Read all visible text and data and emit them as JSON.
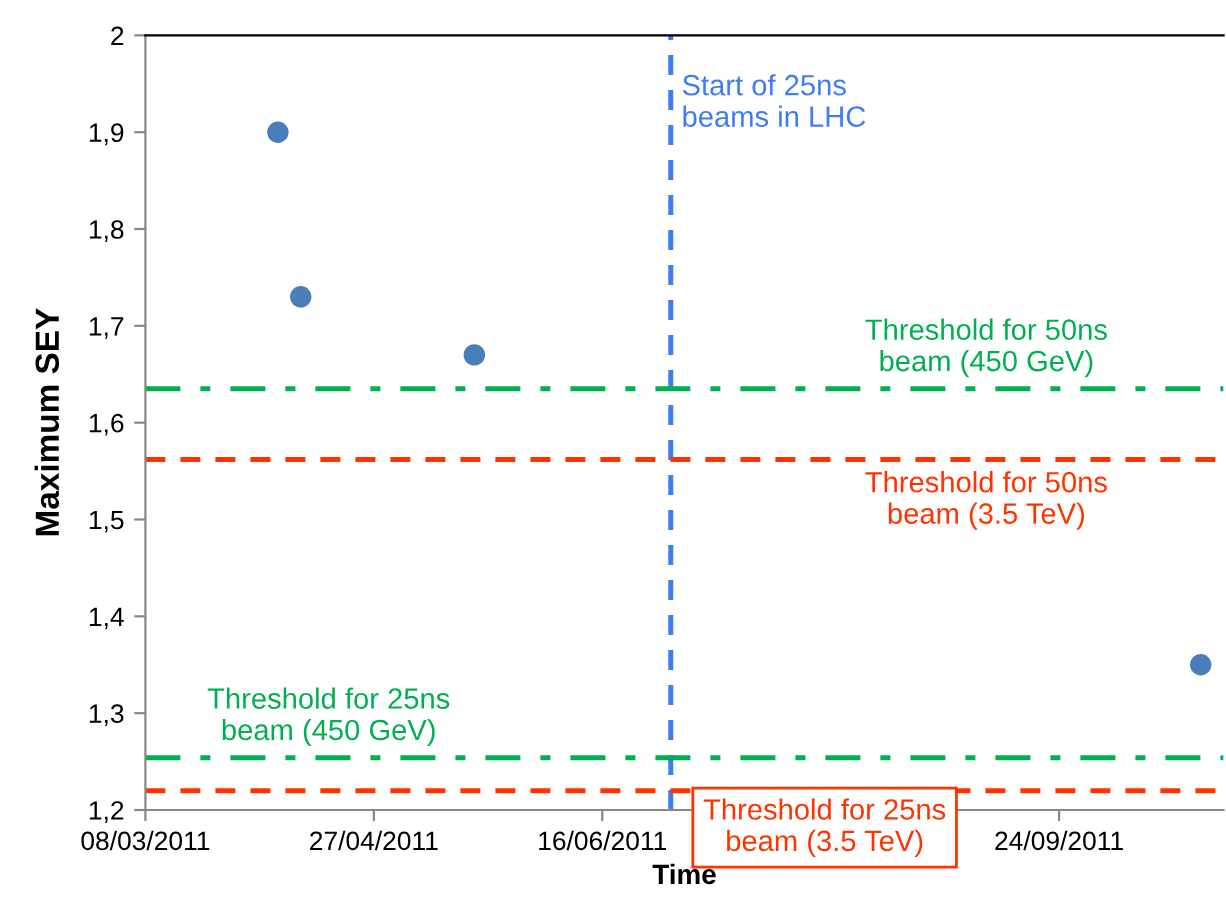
{
  "chart_data": {
    "type": "scatter",
    "xlabel": "Time",
    "ylabel": "Maximum SEY",
    "x": [
      "2011-04-06",
      "2011-04-11",
      "2011-05-19",
      "2011-10-25"
    ],
    "series": [
      {
        "color": "#4a7ebb",
        "values": [
          1.9,
          1.73,
          1.67,
          1.35
        ]
      }
    ],
    "marker": "circle",
    "xlim": [
      "2011-03-08",
      "2011-10-30"
    ],
    "xticks": [
      {
        "value": "2011-03-08",
        "label": "08/03/2011"
      },
      {
        "value": "2011-04-27",
        "label": "27/04/2011"
      },
      {
        "value": "2011-06-16",
        "label": "16/06/2011"
      },
      {
        "value": "2011-08-05",
        "label": null
      },
      {
        "value": "2011-09-24",
        "label": "24/09/2011"
      }
    ],
    "ylim": [
      1.2,
      2
    ],
    "yticks": [
      {
        "value": 1.2,
        "label": "1,2"
      },
      {
        "value": 1.3,
        "label": "1,3"
      },
      {
        "value": 1.4,
        "label": "1,4"
      },
      {
        "value": 1.5,
        "label": "1,5"
      },
      {
        "value": 1.6,
        "label": "1,6"
      },
      {
        "value": 1.7,
        "label": "1,7"
      },
      {
        "value": 1.8,
        "label": "1,8"
      },
      {
        "value": 1.9,
        "label": "1,9"
      },
      2
    ],
    "ref_lines": [
      {
        "axis": "x",
        "value": "2011-07-01",
        "label": "Start of 25ns\nbeams in LHC",
        "color": "#3d7cf5",
        "line_style": "dashed"
      },
      {
        "axis": "y",
        "value": 1.635,
        "label": "Threshold for 50ns\nbeam (450 GeV)",
        "color": "#00b050",
        "line_style": "dashdot"
      },
      {
        "axis": "y",
        "value": 1.562,
        "label": "Threshold for 50ns\nbeam (3.5 TeV)",
        "color": "#ff3300",
        "line_style": "dashed"
      },
      {
        "axis": "y",
        "value": 1.254,
        "label": "Threshold for 25ns\nbeam (450 GeV)",
        "color": "#00b050",
        "line_style": "dashdot"
      },
      {
        "axis": "y",
        "value": 1.22,
        "label": "Threshold for 25ns\nbeam (3.5 TeV)",
        "color": "#ff3300",
        "line_style": "dashed"
      }
    ],
    "grid": false,
    "legend": false
  }
}
